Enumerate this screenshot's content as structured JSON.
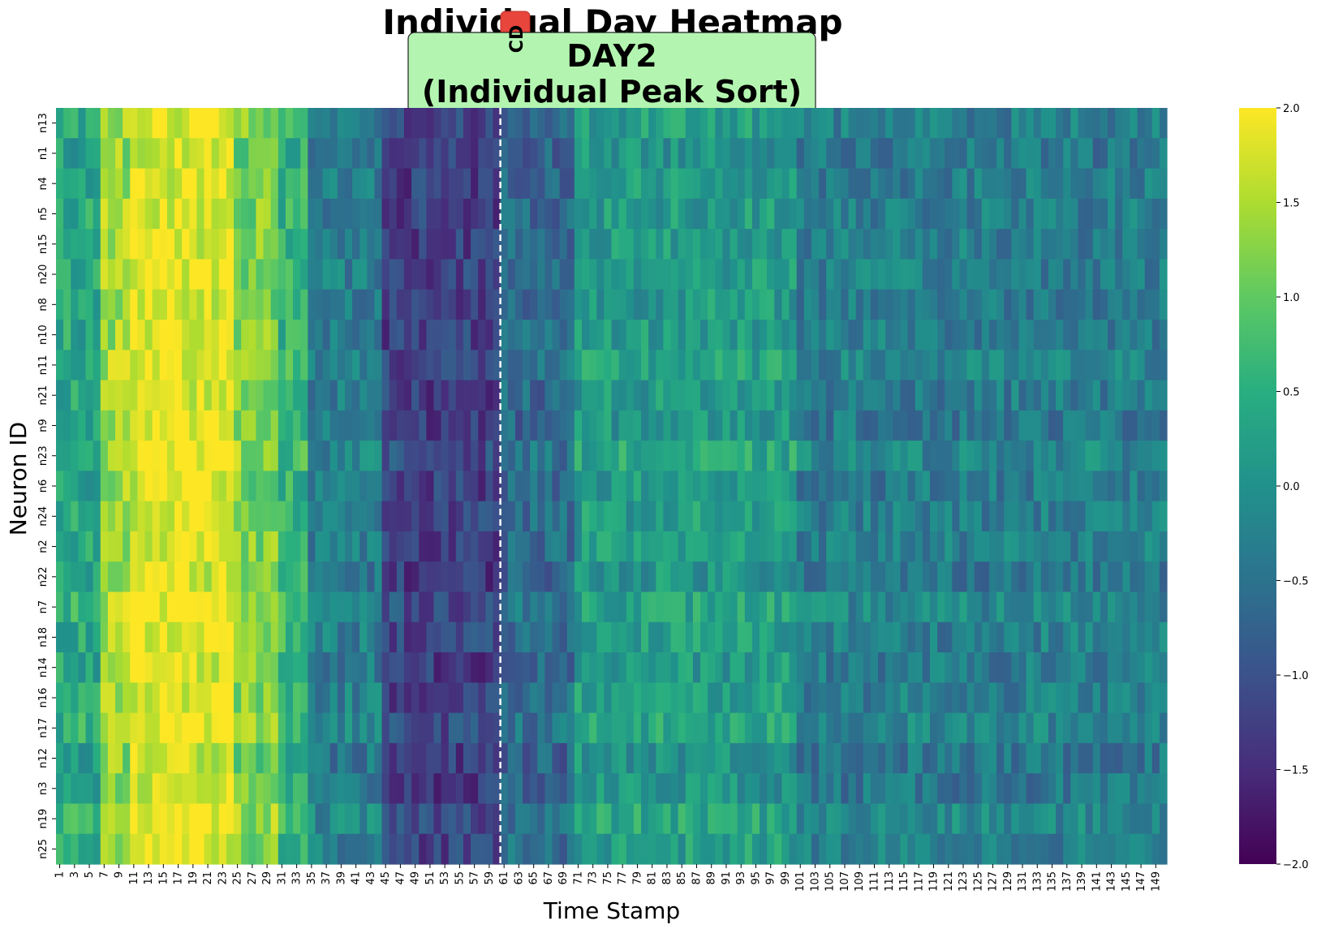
{
  "chart_data": {
    "type": "heatmap",
    "title": "Individual Day Heatmap",
    "subtitle_line1": "DAY2",
    "subtitle_line2": "(Individual Peak Sort)",
    "badge_text": "CD",
    "xlabel": "Time Stamp",
    "ylabel": "Neuron ID",
    "rows": [
      "n13",
      "n1",
      "n4",
      "n5",
      "n15",
      "n20",
      "n8",
      "n10",
      "n11",
      "n21",
      "n9",
      "n23",
      "n6",
      "n24",
      "n2",
      "n22",
      "n7",
      "n18",
      "n14",
      "n16",
      "n17",
      "n12",
      "n3",
      "n19",
      "n25"
    ],
    "x_range": [
      1,
      150
    ],
    "x_tick_step": 2,
    "event_marker_x": 61,
    "colormap": "viridis",
    "vmin": -2.0,
    "vmax": 2.0,
    "colorbar_ticks": [
      "2.0",
      "1.5",
      "1.0",
      "0.5",
      "0.0",
      "−0.5",
      "−1.0",
      "−1.5",
      "−2.0"
    ],
    "colorbar_values": [
      2.0,
      1.5,
      1.0,
      0.5,
      0.0,
      -0.5,
      -1.0,
      -1.5,
      -2.0
    ],
    "profile": {
      "description_segments": [
        {
          "from": 1,
          "to": 6,
          "mean": 0.4
        },
        {
          "from": 7,
          "to": 10,
          "mean": 1.4
        },
        {
          "from": 11,
          "to": 24,
          "mean": 1.85
        },
        {
          "from": 25,
          "to": 30,
          "mean": 1.2
        },
        {
          "from": 31,
          "to": 34,
          "mean": 0.6
        },
        {
          "from": 35,
          "to": 44,
          "mean": -0.3
        },
        {
          "from": 45,
          "to": 60,
          "mean": -1.2
        },
        {
          "from": 61,
          "to": 70,
          "mean": -0.6
        },
        {
          "from": 71,
          "to": 100,
          "mean": 0.2
        },
        {
          "from": 101,
          "to": 150,
          "mean": -0.3
        }
      ],
      "noise": 0.45
    }
  }
}
